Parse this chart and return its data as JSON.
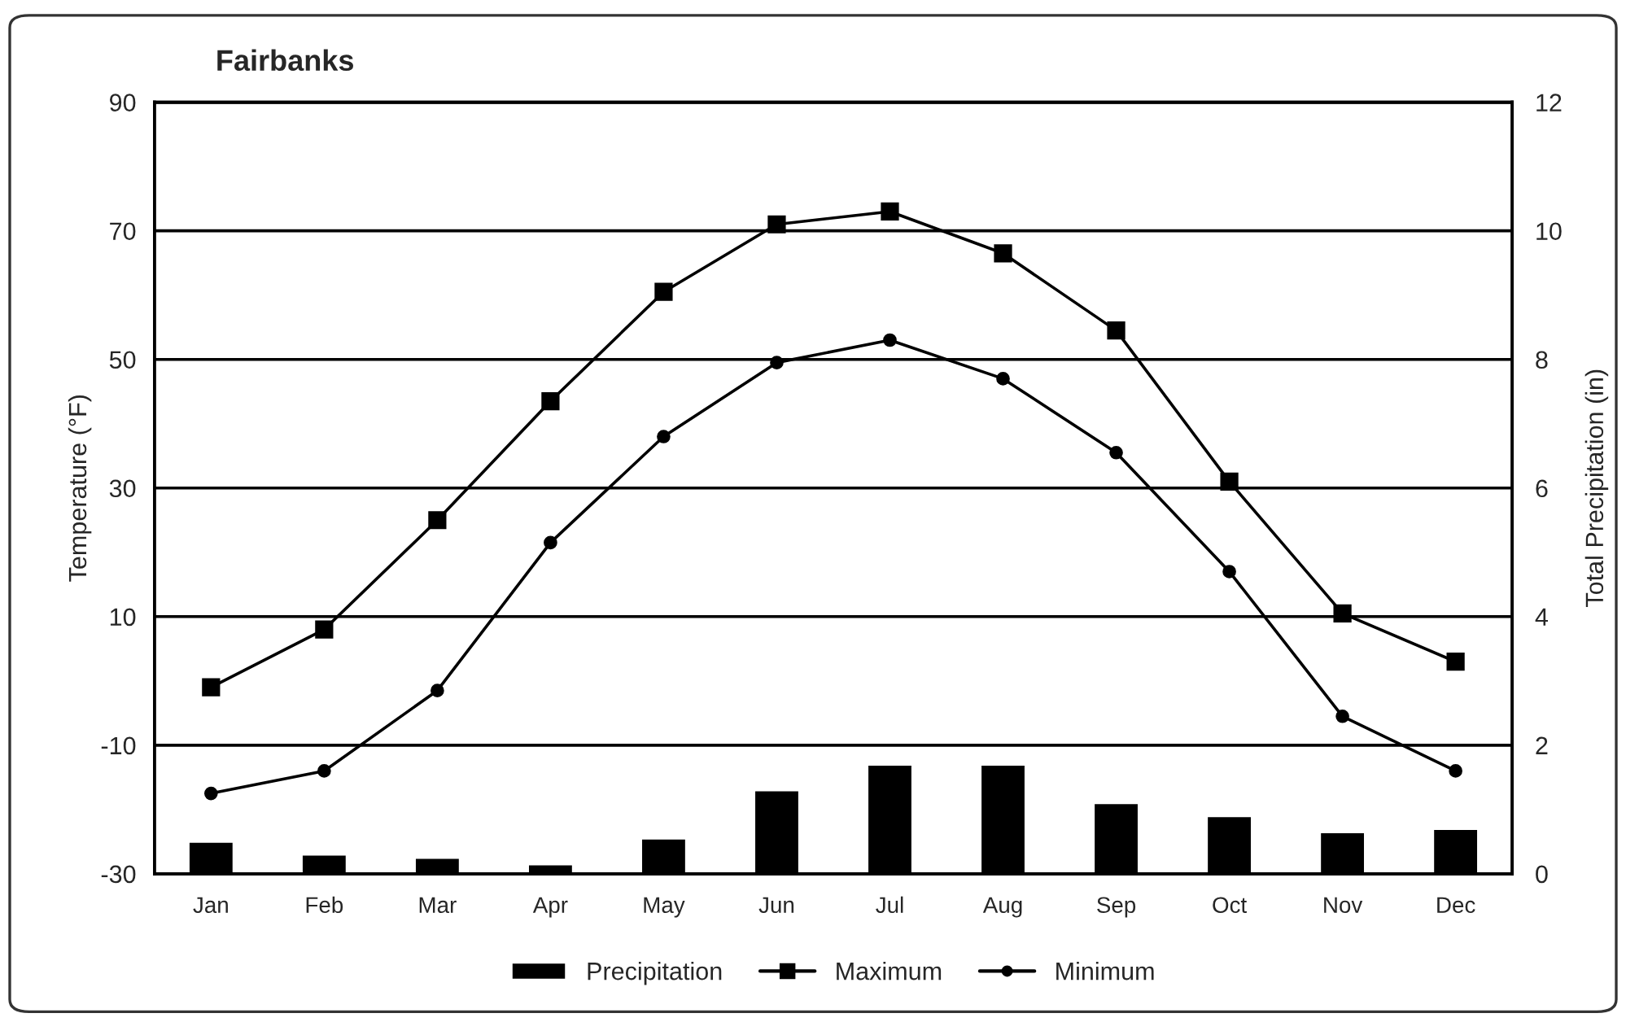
{
  "chart_data": {
    "type": "line",
    "title": "Fairbanks",
    "ylabel": "Temperature (°F)",
    "y2label": "Total Precipitation (in)",
    "categories": [
      "Jan",
      "Feb",
      "Mar",
      "Apr",
      "May",
      "Jun",
      "Jul",
      "Aug",
      "Sep",
      "Oct",
      "Nov",
      "Dec"
    ],
    "series": [
      {
        "name": "Precipitation",
        "type": "bar",
        "axis": "y2",
        "color": "#000000",
        "values": [
          0.5,
          0.3,
          0.25,
          0.15,
          0.55,
          1.3,
          1.7,
          1.7,
          1.1,
          0.9,
          0.65,
          0.7
        ]
      },
      {
        "name": "Maximum",
        "color": "#000000",
        "marker": "square",
        "values": [
          -1,
          8,
          25,
          43.5,
          60.5,
          71,
          73,
          66.5,
          54.5,
          31,
          10.5,
          3
        ]
      },
      {
        "name": "Minimum",
        "color": "#000000",
        "marker": "circle",
        "values": [
          -17.5,
          -14,
          -1.5,
          21.5,
          38,
          49.5,
          53,
          47,
          35.5,
          17,
          -5.5,
          -14
        ]
      }
    ],
    "ylim": [
      -30,
      90
    ],
    "yticks": [
      -30,
      -10,
      10,
      30,
      50,
      70,
      90
    ],
    "y2lim": [
      0,
      12
    ],
    "y2ticks": [
      0,
      2,
      4,
      6,
      8,
      10,
      12
    ],
    "grid": "y",
    "legend": "bottom",
    "line_style": "solid"
  }
}
